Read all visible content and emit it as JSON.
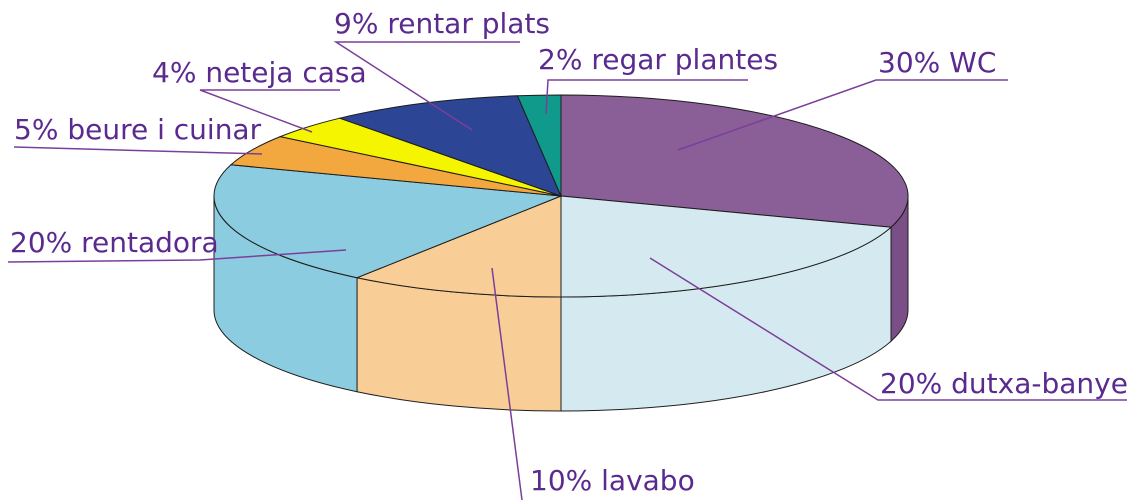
{
  "chart_data": {
    "type": "pie",
    "title": "",
    "slices": [
      {
        "label": "30% WC",
        "value": 30,
        "color": "#8a5e96",
        "side_color": "#7a4e86"
      },
      {
        "label": "20% dutxa-banyera",
        "value": 20,
        "color": "#d5eaf0",
        "side_color": "#d5eaf0"
      },
      {
        "label": "10% lavabo",
        "value": 10,
        "color": "#f8ce96",
        "side_color": "#f8ce96"
      },
      {
        "label": "20% rentadora",
        "value": 20,
        "color": "#8ccce0",
        "side_color": "#8ccce0"
      },
      {
        "label": "5% beure i cuinar",
        "value": 5,
        "color": "#f2a83e",
        "side_color": "#f2a83e"
      },
      {
        "label": "4% neteja casa",
        "value": 4,
        "color": "#f5f500",
        "side_color": "#f5f500"
      },
      {
        "label": "9% rentar plats",
        "value": 9,
        "color": "#2d4595",
        "side_color": "#2d4595"
      },
      {
        "label": "2% regar plantes",
        "value": 2,
        "color": "#0f9a8b",
        "side_color": "#0f9a8b"
      }
    ],
    "label_color": "#5a2a8f",
    "line_color": "#7b3f9a"
  }
}
